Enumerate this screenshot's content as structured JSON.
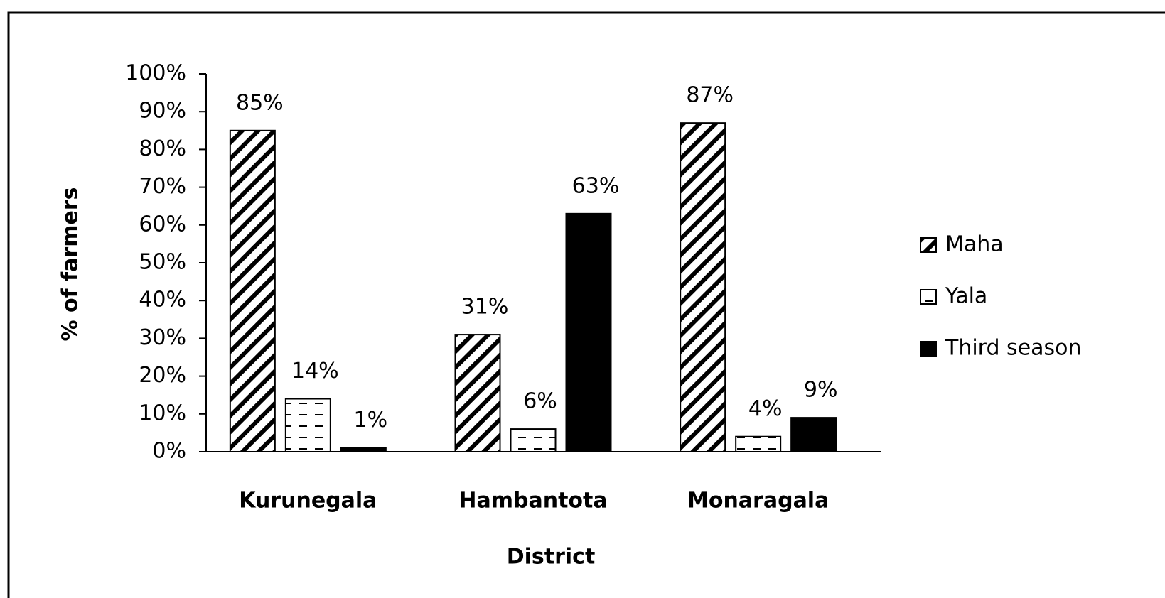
{
  "chart_data": {
    "type": "bar",
    "x_label": "District",
    "y_label": "% of farmers",
    "categories": [
      "Kurunegala",
      "Hambantota",
      "Monaragala"
    ],
    "series": [
      {
        "name": "Maha",
        "color": "#000000",
        "pattern": "diagonal",
        "values": [
          85,
          31,
          87
        ],
        "value_labels": [
          "85%",
          "31%",
          "87%"
        ]
      },
      {
        "name": "Yala",
        "color": "#000000",
        "pattern": "dash",
        "values": [
          14,
          6,
          4
        ],
        "value_labels": [
          "14%",
          "6%",
          "4%"
        ]
      },
      {
        "name": "Third season",
        "color": "#000000",
        "pattern": "solid",
        "values": [
          1,
          63,
          9
        ],
        "value_labels": [
          "1%",
          "63%",
          "9%"
        ]
      }
    ],
    "ylim": [
      0,
      100
    ],
    "yticks": [
      {
        "value": 0,
        "label": "0%"
      },
      {
        "value": 10,
        "label": "10%"
      },
      {
        "value": 20,
        "label": "20%"
      },
      {
        "value": 30,
        "label": "30%"
      },
      {
        "value": 40,
        "label": "40%"
      },
      {
        "value": 50,
        "label": "50%"
      },
      {
        "value": 60,
        "label": "60%"
      },
      {
        "value": 70,
        "label": "70%"
      },
      {
        "value": 80,
        "label": "80%"
      },
      {
        "value": 90,
        "label": "90%"
      },
      {
        "value": 100,
        "label": "100%"
      }
    ],
    "grid": false,
    "legend": "right"
  }
}
